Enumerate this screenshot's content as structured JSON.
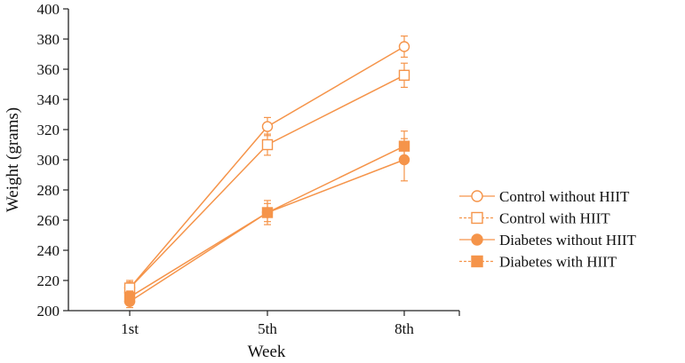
{
  "chart_data": {
    "type": "line",
    "title": "",
    "xlabel": "Week",
    "ylabel": "Weight (grams)",
    "categories": [
      "1st",
      "5th",
      "8th"
    ],
    "ylim": [
      200,
      400
    ],
    "yticks": [
      200,
      220,
      240,
      260,
      280,
      300,
      320,
      340,
      360,
      380,
      400
    ],
    "grid": false,
    "legend_position": "right",
    "series": [
      {
        "name": "Control without HIIT",
        "marker": "circle",
        "filled": false,
        "dashed_legend": false,
        "values": [
          215,
          322,
          375
        ],
        "errors": [
          4,
          6,
          7
        ]
      },
      {
        "name": "Control with HIIT",
        "marker": "square",
        "filled": false,
        "dashed_legend": true,
        "values": [
          215,
          310,
          356
        ],
        "errors": [
          5,
          7,
          8
        ]
      },
      {
        "name": "Diabetes without HIIT",
        "marker": "circle",
        "filled": true,
        "dashed_legend": false,
        "values": [
          206,
          265,
          300
        ],
        "errors": [
          4,
          8,
          14
        ]
      },
      {
        "name": "Diabetes with HIIT",
        "marker": "square",
        "filled": true,
        "dashed_legend": true,
        "values": [
          209,
          265,
          309
        ],
        "errors": [
          4,
          6,
          10
        ]
      }
    ],
    "colors": {
      "series": "#F5944A",
      "axis": "#222222"
    }
  }
}
